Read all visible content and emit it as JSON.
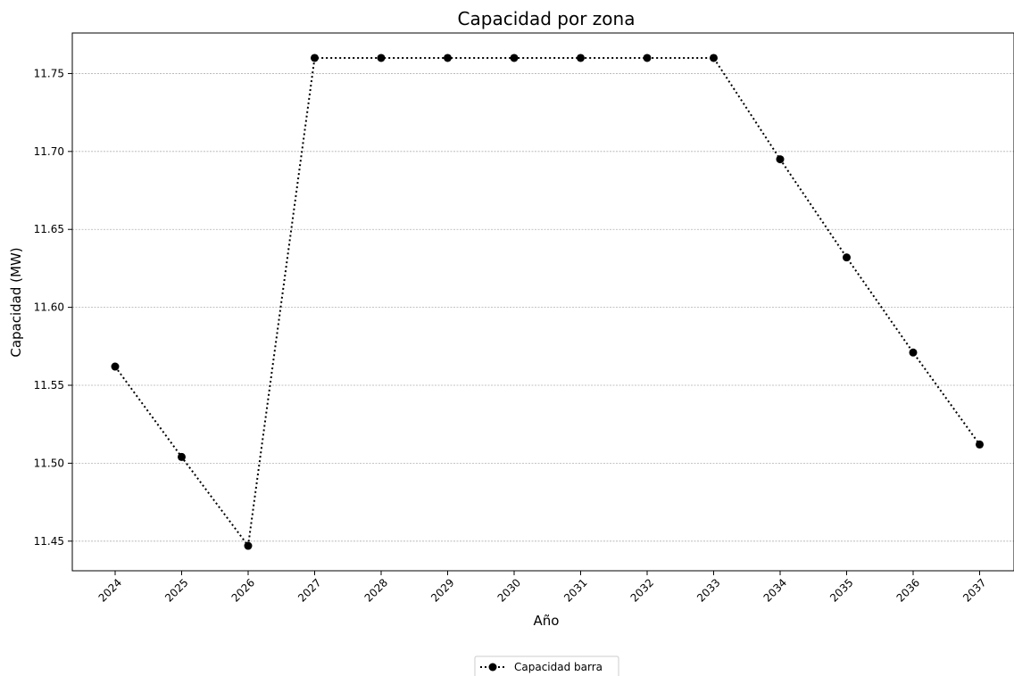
{
  "chart_data": {
    "type": "line",
    "title": "Capacidad por zona",
    "xlabel": "Año",
    "ylabel": "Capacidad (MW)",
    "x": [
      "2024",
      "2025",
      "2026",
      "2027",
      "2028",
      "2029",
      "2030",
      "2031",
      "2032",
      "2033",
      "2034",
      "2035",
      "2036",
      "2037"
    ],
    "series": [
      {
        "name": "Capacidad barra",
        "values": [
          11.562,
          11.504,
          11.447,
          11.76,
          11.76,
          11.76,
          11.76,
          11.76,
          11.76,
          11.76,
          11.695,
          11.632,
          11.571,
          11.512
        ],
        "color": "#000000",
        "line_style": "dotted",
        "marker": "circle"
      }
    ],
    "ylim": [
      11.431,
      11.776
    ],
    "yticks": [
      "11.45",
      "11.50",
      "11.55",
      "11.60",
      "11.65",
      "11.70",
      "11.75"
    ],
    "grid": "horizontal",
    "legend_position": "bottom-center"
  }
}
